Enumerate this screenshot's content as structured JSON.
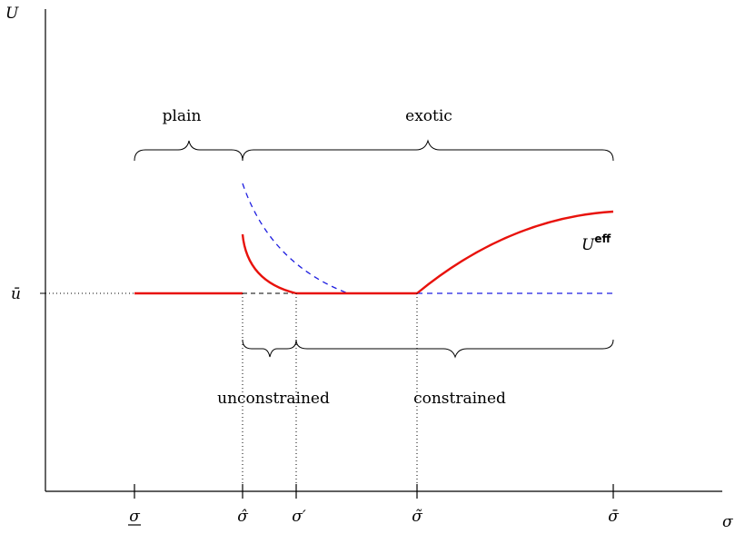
{
  "axes": {
    "y_label": "U",
    "x_label": "σ"
  },
  "levels": {
    "u_bar": "ū"
  },
  "ticks": [
    "σ",
    "σ̂",
    "σ′",
    "σ̃",
    "σ̄"
  ],
  "regions_top": {
    "plain": "plain",
    "exotic": "exotic"
  },
  "regions_bottom": {
    "unconstrained": "unconstrained",
    "constrained": "constrained"
  },
  "curve_label": {
    "base": "U",
    "sup": "eff"
  },
  "colors": {
    "effective_curve": "#e8120c",
    "dashed_curve": "#1f1fe0",
    "axis": "#000000"
  }
}
